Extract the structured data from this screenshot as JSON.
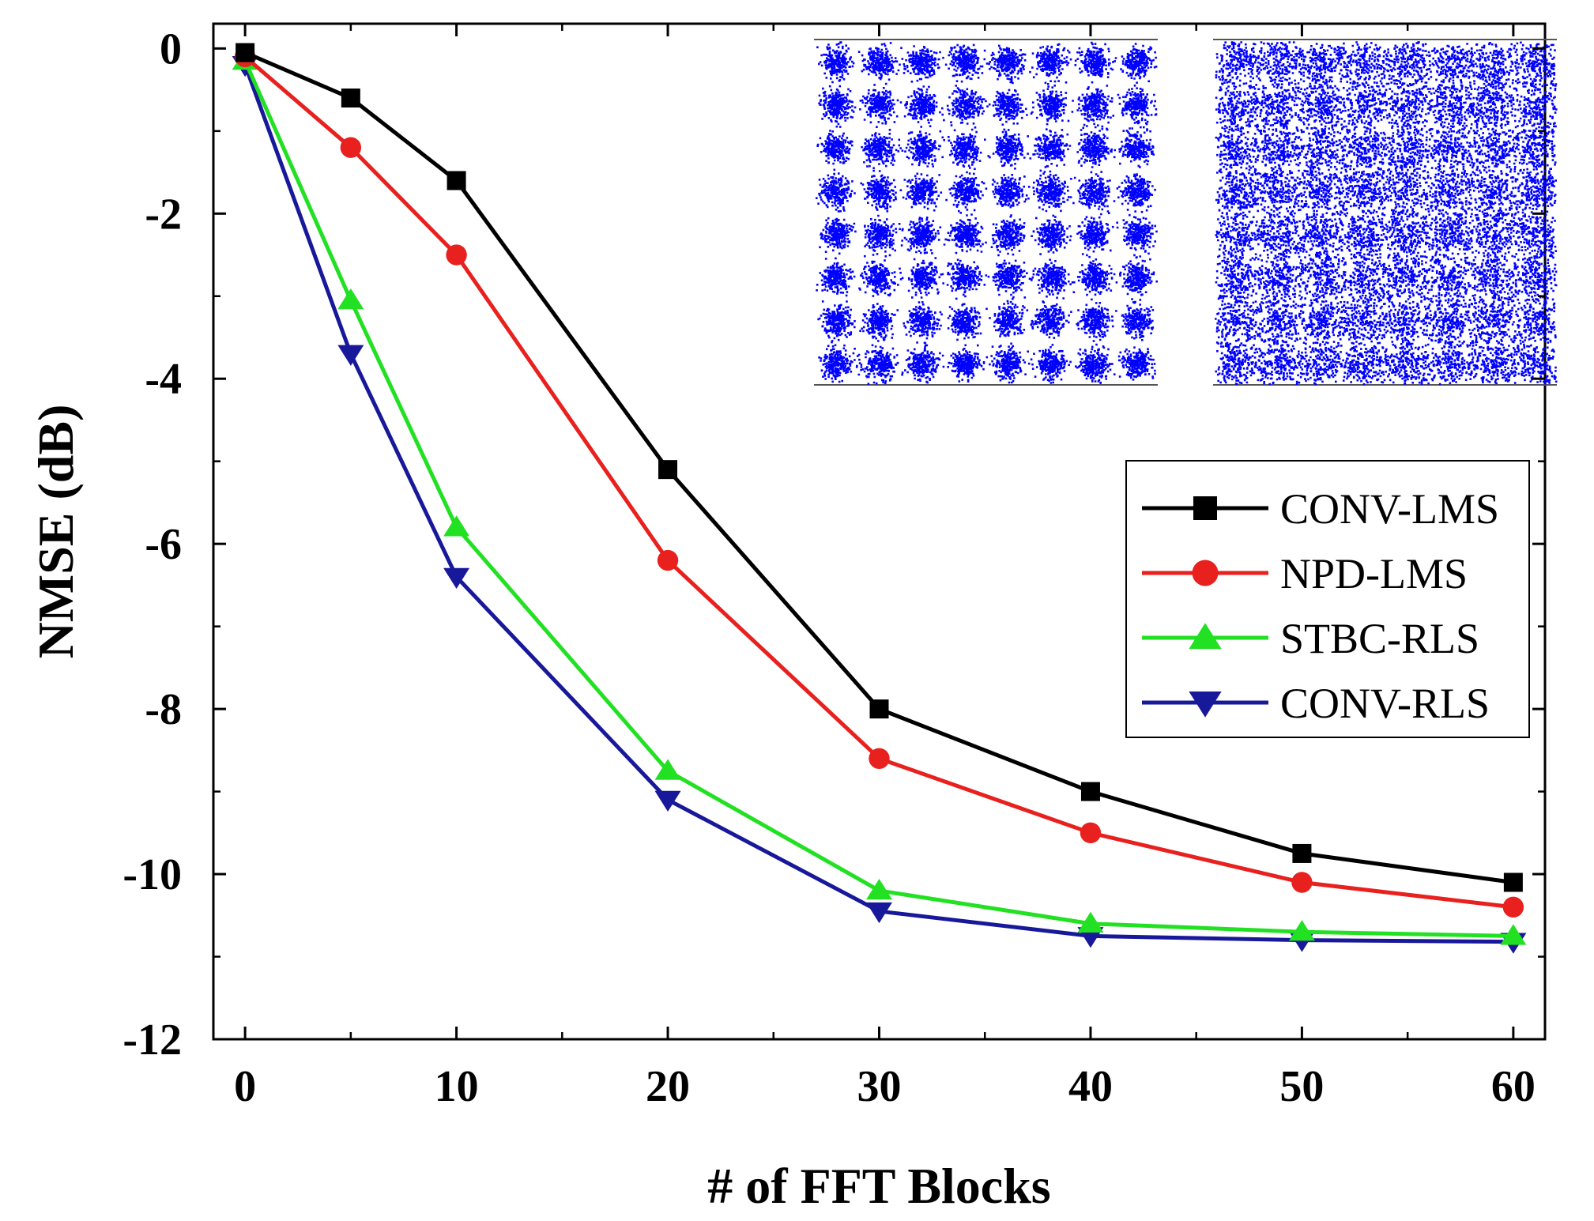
{
  "chart_data": {
    "type": "line",
    "xlabel": "# of FFT Blocks",
    "ylabel": "NMSE (dB)",
    "xlim": [
      -1.5,
      61.5
    ],
    "ylim": [
      -12,
      0.3
    ],
    "xticks": [
      0,
      10,
      20,
      30,
      40,
      50,
      60
    ],
    "xtick_labels": [
      "0",
      "10",
      "20",
      "30",
      "40",
      "50",
      "60"
    ],
    "yticks": [
      0,
      -2,
      -4,
      -6,
      -8,
      -10,
      -12
    ],
    "ytick_labels": [
      "0",
      "-2",
      "-4",
      "-6",
      "-8",
      "-10",
      "-12"
    ],
    "grid": false,
    "legend_position": "right",
    "x": [
      0,
      5,
      10,
      20,
      30,
      40,
      50,
      60
    ],
    "series": [
      {
        "name": "CONV-LMS",
        "color": "#000000",
        "marker": "square",
        "values": [
          -0.05,
          -0.6,
          -1.6,
          -5.1,
          -8.0,
          -9.0,
          -9.75,
          -10.1
        ]
      },
      {
        "name": "NPD-LMS",
        "color": "#e8201e",
        "marker": "circle",
        "values": [
          -0.1,
          -1.2,
          -2.5,
          -6.2,
          -8.6,
          -9.5,
          -10.1,
          -10.4
        ]
      },
      {
        "name": "STBC-RLS",
        "color": "#22e022",
        "marker": "triangle-up",
        "values": [
          -0.15,
          -3.05,
          -5.8,
          -8.75,
          -10.2,
          -10.6,
          -10.7,
          -10.75
        ]
      },
      {
        "name": "CONV-RLS",
        "color": "#18189a",
        "marker": "triangle-down",
        "values": [
          -0.2,
          -3.7,
          -6.4,
          -9.1,
          -10.45,
          -10.75,
          -10.8,
          -10.82
        ]
      }
    ],
    "insets": [
      {
        "type": "scatter",
        "kind": "constellation",
        "grid_size": 8,
        "spread": "low",
        "color": "#0000ff"
      },
      {
        "type": "scatter",
        "kind": "constellation",
        "grid_size": 8,
        "spread": "high",
        "color": "#0000ff"
      }
    ]
  }
}
